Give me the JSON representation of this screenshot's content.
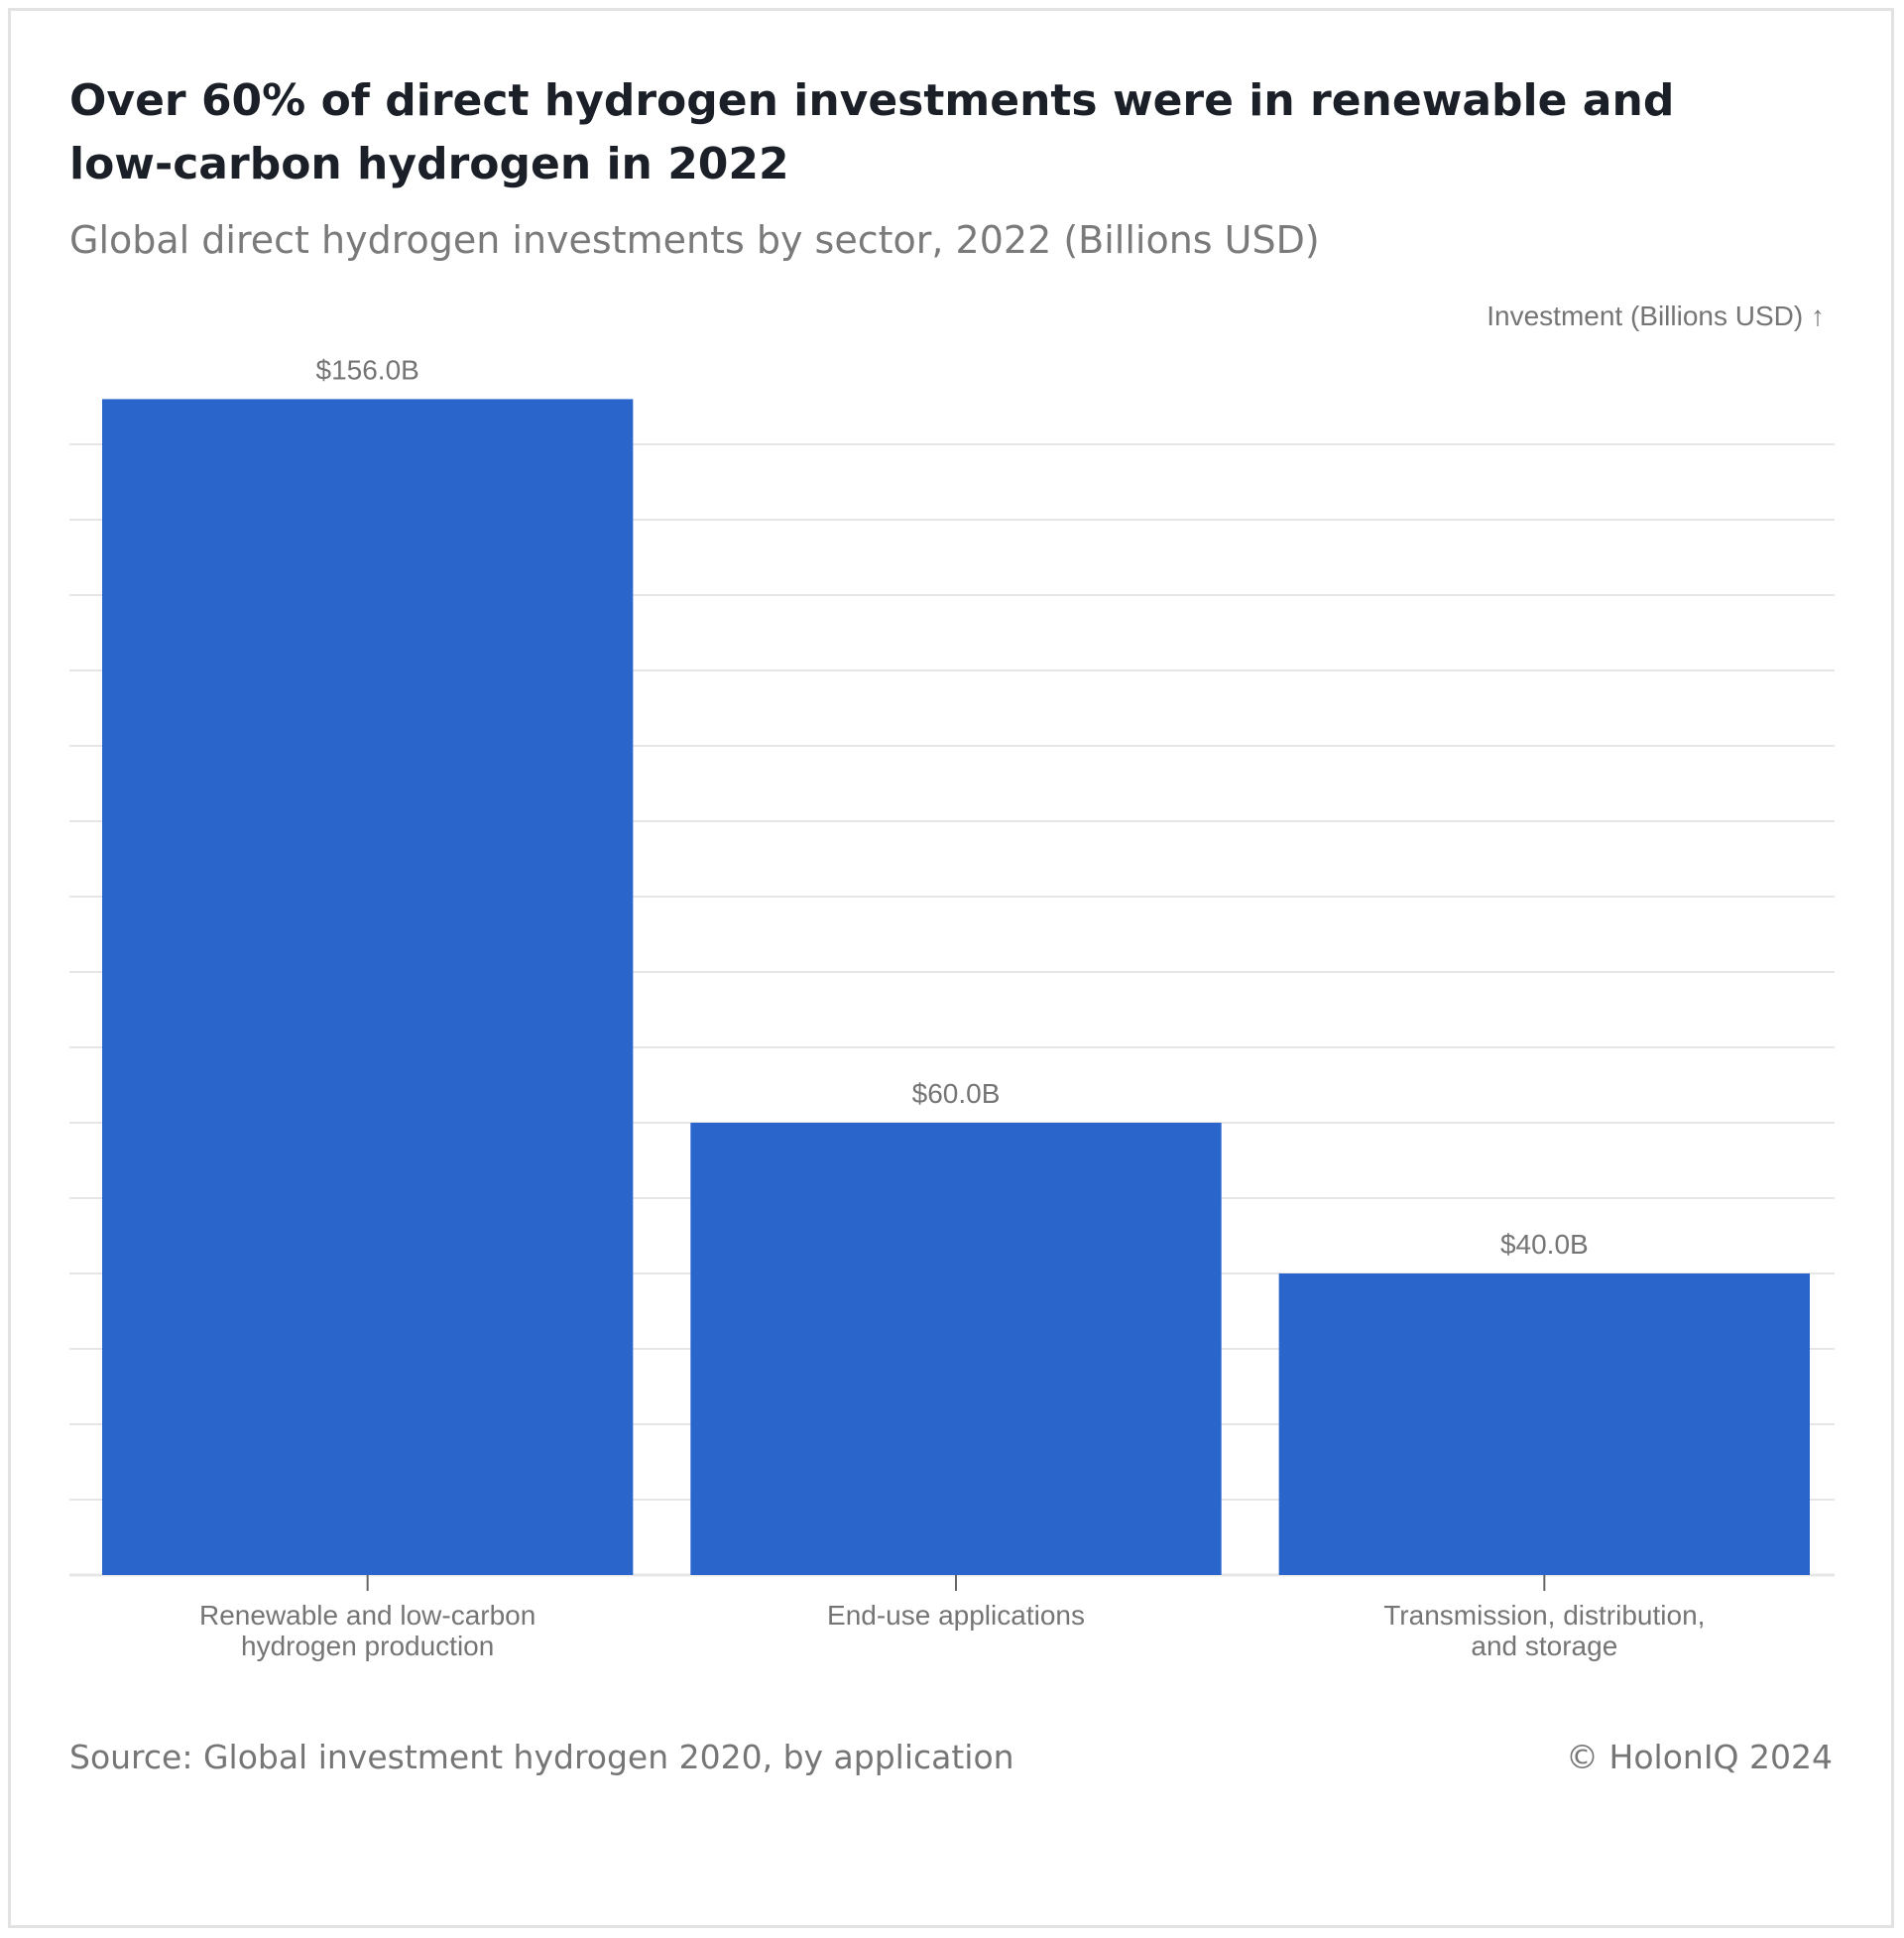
{
  "header": {
    "title": "Over 60% of direct hydrogen investments were in renewable and low-carbon hydrogen in 2022",
    "subtitle": "Global direct hydrogen investments by sector, 2022 (Billions USD)"
  },
  "footer": {
    "source": "Source: Global investment hydrogen 2020, by application",
    "copyright": "© HolonIQ 2024"
  },
  "colors": {
    "bar": "#2a65cc",
    "grid": "#e6e6e6",
    "text_muted": "#757575"
  },
  "chart_data": {
    "type": "bar",
    "title": "Over 60% of direct hydrogen investments were in renewable and low-carbon hydrogen in 2022",
    "subtitle": "Global direct hydrogen investments by sector, 2022 (Billions USD)",
    "ylabel": "Investment (Billions USD) ↑",
    "xlabel": "",
    "categories": [
      [
        "Renewable and low-carbon",
        "hydrogen production"
      ],
      [
        "End-use applications"
      ],
      [
        "Transmission, distribution,",
        "and storage"
      ]
    ],
    "values": [
      156,
      60,
      40
    ],
    "value_labels": [
      "$156.0B",
      "$60.0B",
      "$40.0B"
    ],
    "ylim": [
      0,
      150
    ],
    "y_grid_step": 10,
    "grid": true,
    "show_y_tick_labels": false
  }
}
